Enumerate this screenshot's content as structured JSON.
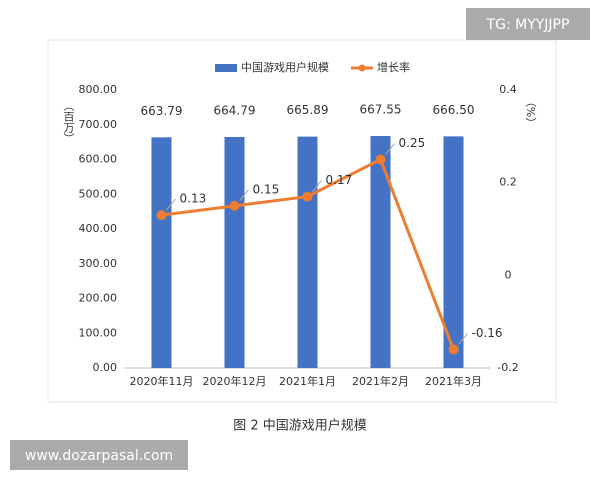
{
  "chart_data": {
    "type": "combo",
    "caption": "图 2 中国游戏用户规模",
    "ylabel": "（百万）",
    "y2label": "（%）",
    "categories": [
      "2020年11月",
      "2020年12月",
      "2021年1月",
      "2021年2月",
      "2021年3月"
    ],
    "series": [
      {
        "name": "中国游戏用户规模",
        "type": "bar",
        "color": "#4472c4",
        "values": [
          663.79,
          664.79,
          665.89,
          667.55,
          666.5
        ],
        "value_labels": [
          "663.79",
          "664.79",
          "665.89",
          "667.55",
          "666.50"
        ]
      },
      {
        "name": "增长率",
        "type": "line",
        "axis": "y2",
        "color": "#ed7d31",
        "values": [
          0.13,
          0.15,
          0.17,
          0.25,
          -0.16
        ]
      }
    ],
    "ylim": [
      0,
      800
    ],
    "yticks": [
      {
        "value": 0,
        "label": "0.00"
      },
      {
        "value": 100,
        "label": "100.00"
      },
      {
        "value": 200,
        "label": "200.00"
      },
      {
        "value": 300,
        "label": "300.00"
      },
      {
        "value": 400,
        "label": "400.00"
      },
      {
        "value": 500,
        "label": "500.00"
      },
      {
        "value": 600,
        "label": "600.00"
      },
      {
        "value": 700,
        "label": "700.00"
      },
      {
        "value": 800,
        "label": "800.00"
      }
    ],
    "y2lim": [
      -0.2,
      0.4
    ],
    "y2ticks": [
      -0.2,
      0,
      0.2,
      0.4
    ],
    "legend": "top"
  },
  "watermarks": [
    "TG: MYYJJPP",
    "www.dozarpasal.com"
  ]
}
